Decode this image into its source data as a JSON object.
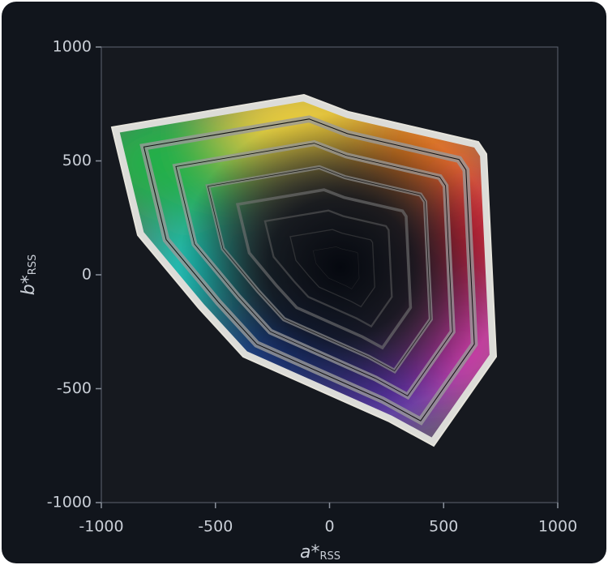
{
  "chart_data": {
    "type": "area",
    "xlabel": "a*",
    "xlabel_sub": "RSS",
    "ylabel": "b*",
    "ylabel_sub": "RSS",
    "xlim": [
      -1000,
      1000
    ],
    "xticks": [
      -1000,
      -500,
      0,
      500,
      1000
    ],
    "ylim": [
      -1000,
      1000
    ],
    "yticks": [
      -1000,
      -500,
      0,
      500,
      1000
    ]
  }
}
